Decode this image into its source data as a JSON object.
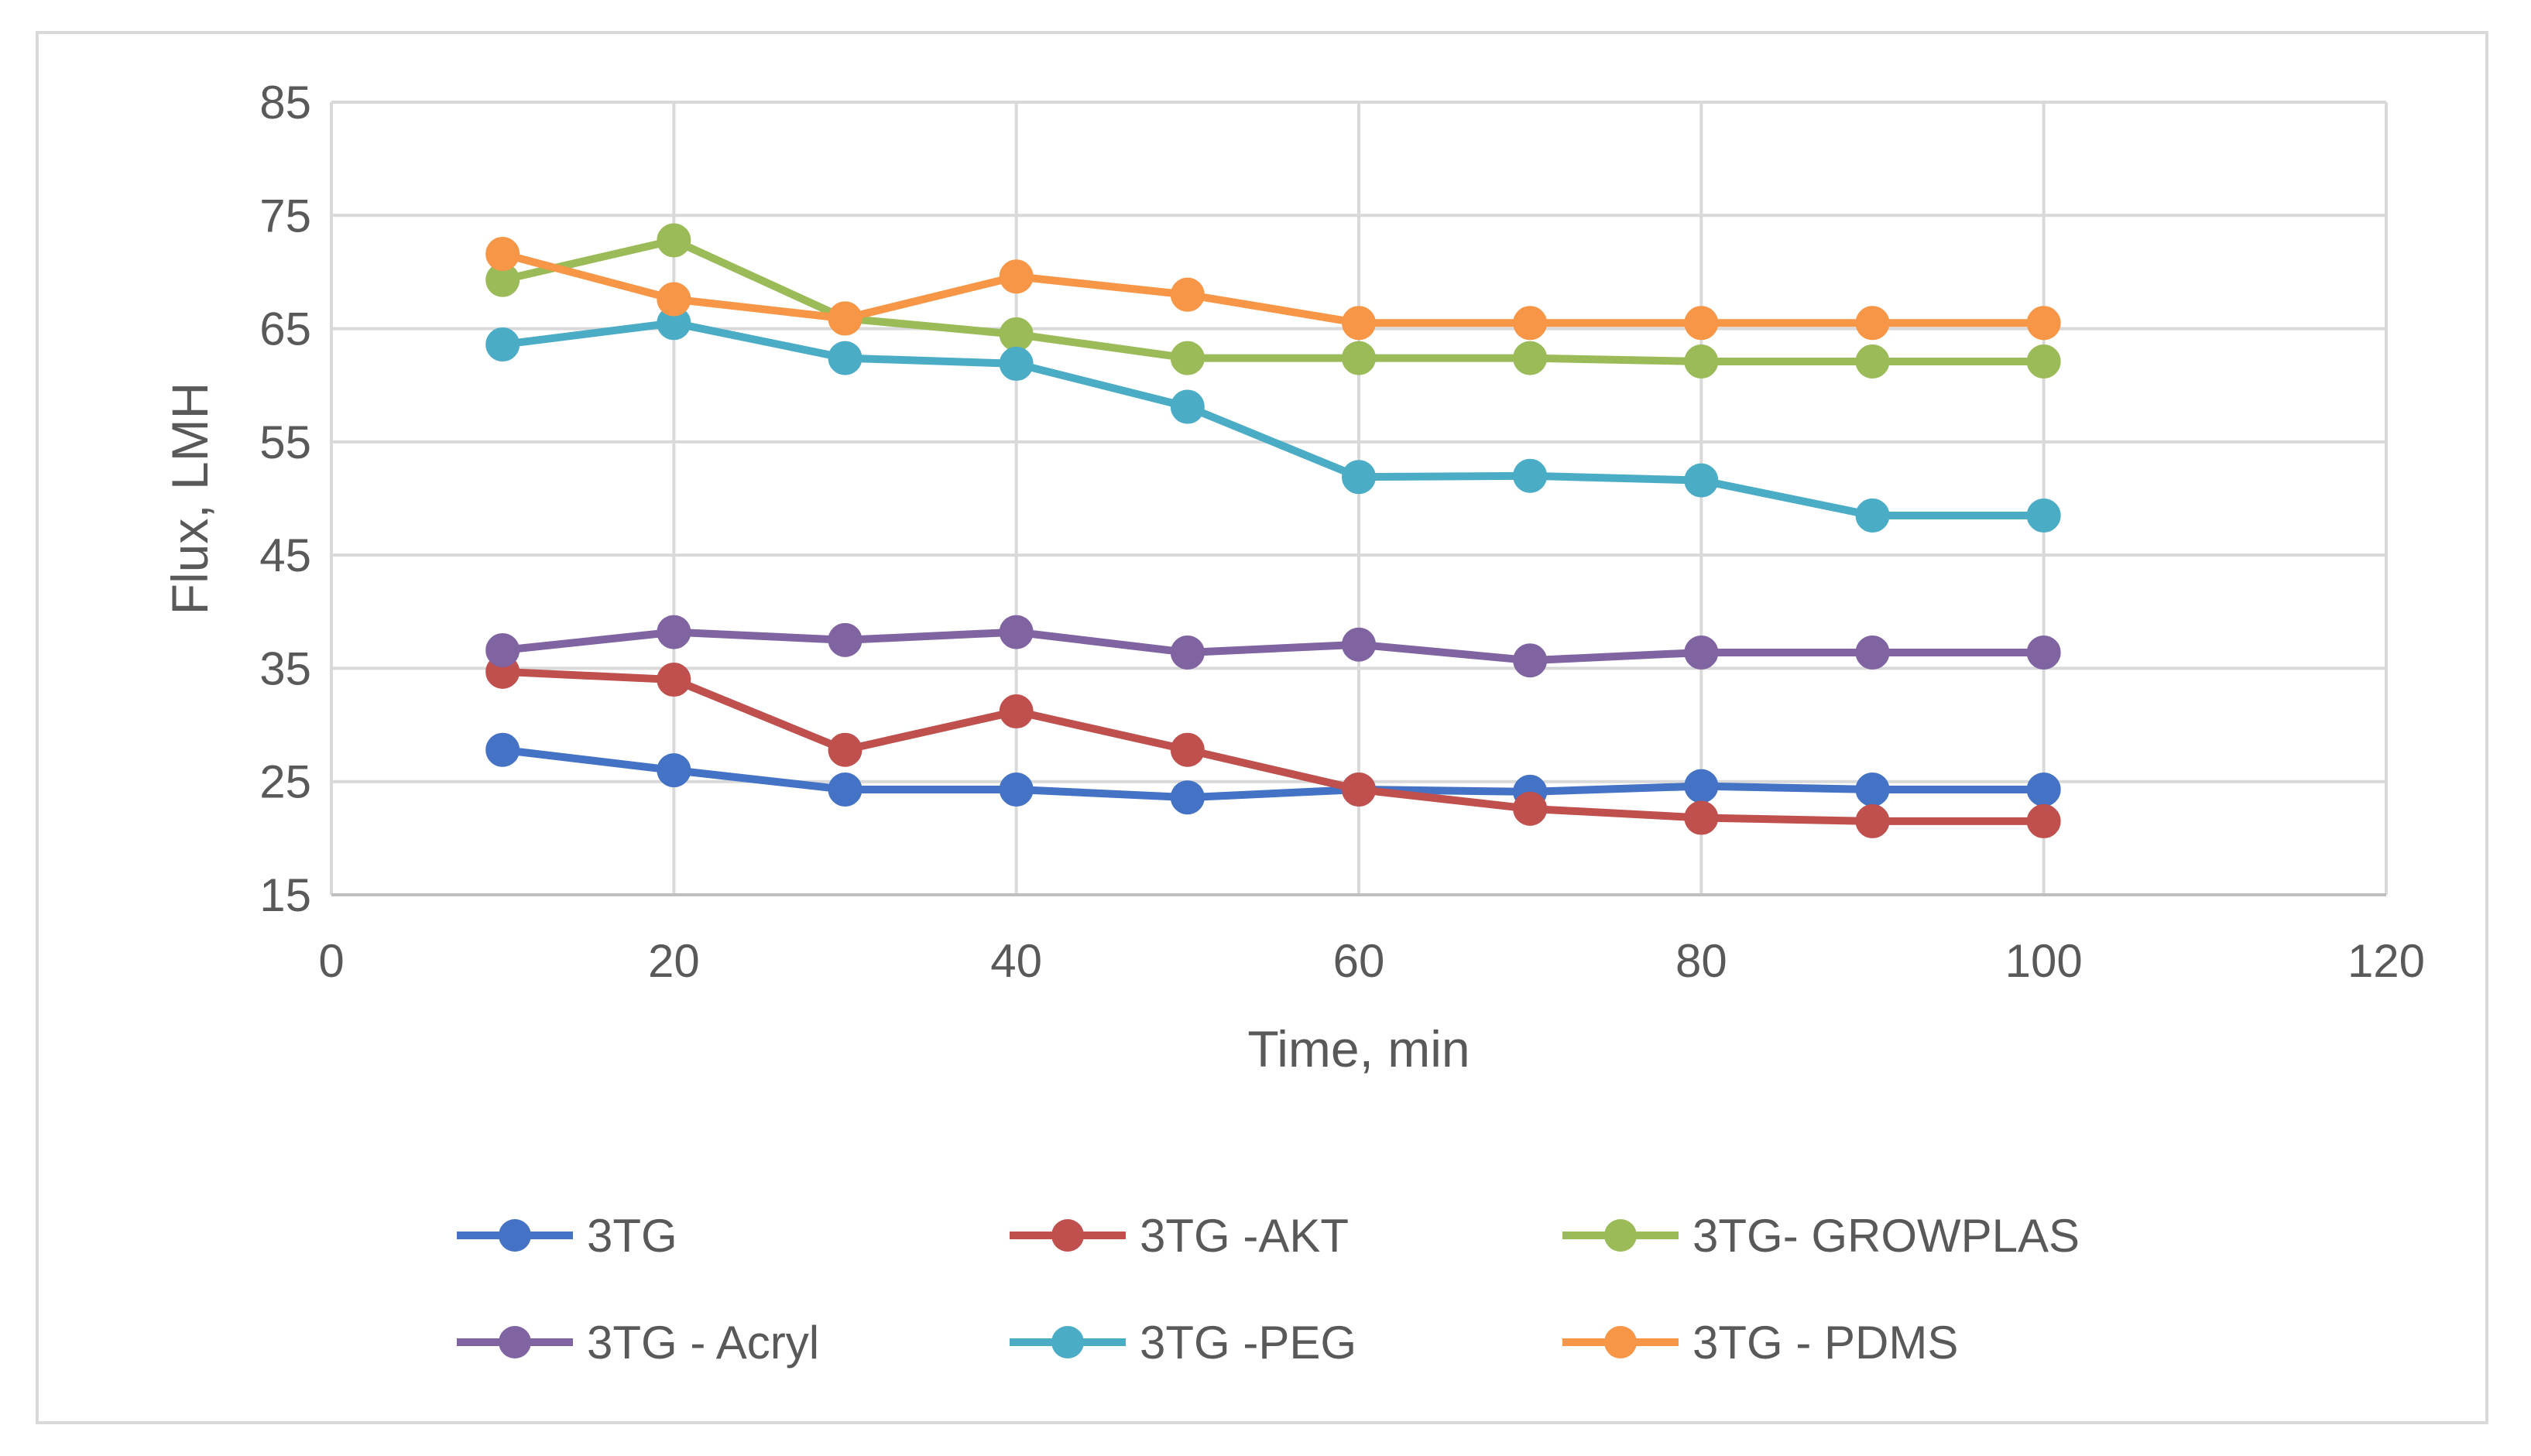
{
  "chart_data": {
    "type": "line",
    "title": "",
    "xlabel": "Time, min",
    "ylabel": "Flux, LMH",
    "xlim": [
      0,
      120
    ],
    "ylim": [
      15,
      85
    ],
    "xticks": [
      0,
      20,
      40,
      60,
      80,
      100,
      120
    ],
    "yticks": [
      15,
      25,
      35,
      45,
      55,
      65,
      75,
      85
    ],
    "grid": true,
    "legend_position": "bottom",
    "x": [
      10,
      20,
      30,
      40,
      50,
      60,
      70,
      80,
      90,
      100
    ],
    "series": [
      {
        "name": "3TG",
        "color": "#4472C4",
        "values": [
          27.8,
          26.0,
          24.3,
          24.3,
          23.6,
          24.3,
          24.1,
          24.6,
          24.3,
          24.3
        ]
      },
      {
        "name": "3TG -AKT",
        "color": "#C0504D",
        "values": [
          34.7,
          34.0,
          27.8,
          31.2,
          27.8,
          24.3,
          22.6,
          21.8,
          21.5,
          21.5
        ]
      },
      {
        "name": "3TG- GROWPLAS",
        "color": "#9BBB59",
        "values": [
          69.3,
          72.8,
          65.9,
          64.5,
          62.4,
          62.4,
          62.4,
          62.1,
          62.1,
          62.1
        ]
      },
      {
        "name": "3TG - Acryl",
        "color": "#8064A2",
        "values": [
          36.6,
          38.2,
          37.5,
          38.2,
          36.4,
          37.1,
          35.7,
          36.4,
          36.4,
          36.4
        ]
      },
      {
        "name": "3TG -PEG",
        "color": "#4BACC6",
        "values": [
          63.6,
          65.5,
          62.4,
          61.9,
          58.1,
          51.9,
          52.0,
          51.6,
          48.5,
          48.5
        ]
      },
      {
        "name": "3TG - PDMS",
        "color": "#F79646",
        "values": [
          71.6,
          67.6,
          65.9,
          69.6,
          68.0,
          65.5,
          65.5,
          65.5,
          65.5,
          65.5
        ]
      }
    ]
  }
}
